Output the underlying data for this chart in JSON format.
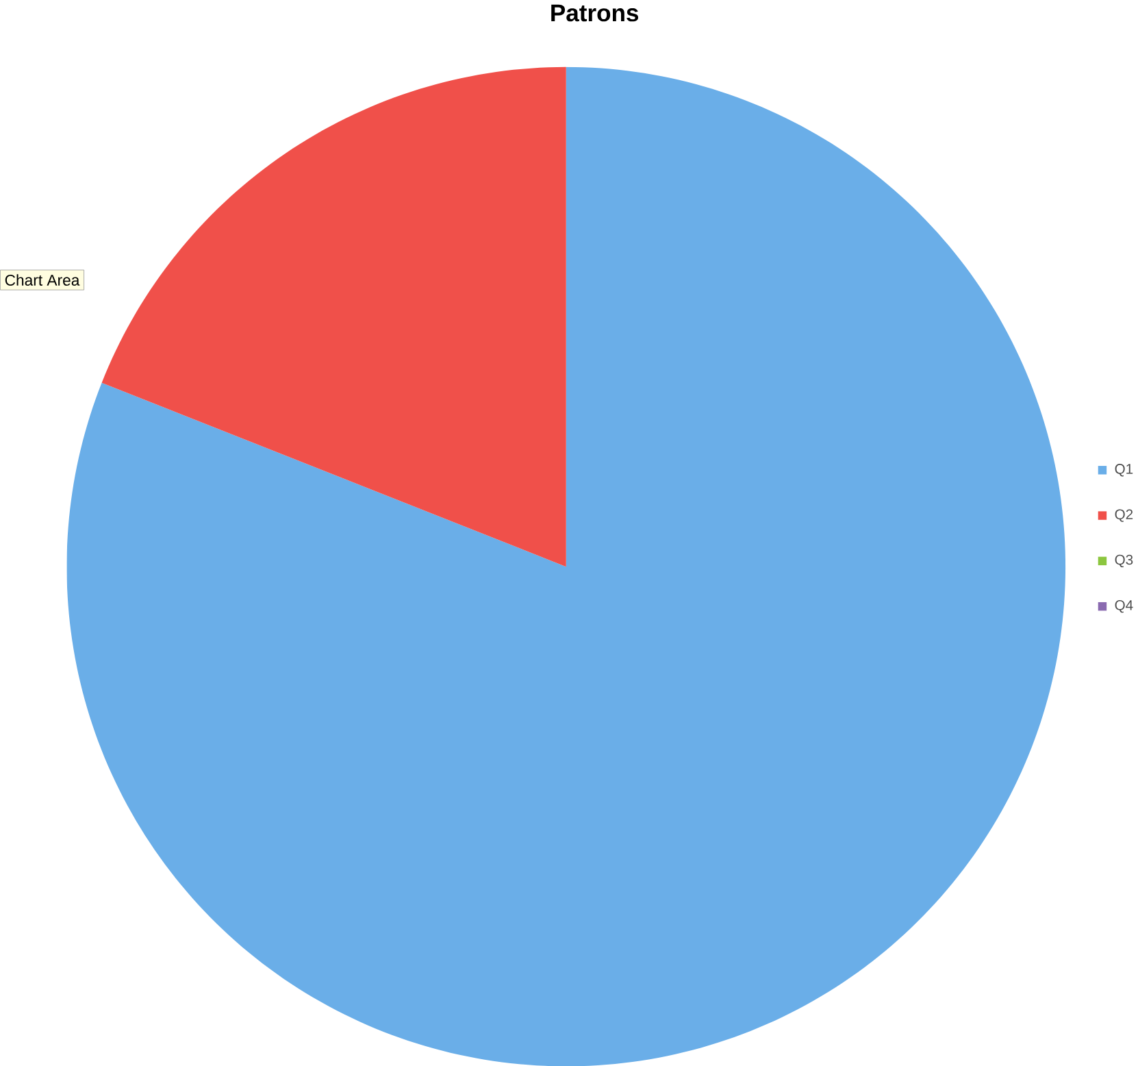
{
  "chart_data": {
    "type": "pie",
    "title": "Patrons",
    "categories": [
      "Q1",
      "Q2",
      "Q3",
      "Q4"
    ],
    "values": [
      81,
      19,
      0,
      0
    ],
    "colors": [
      "#6aaee8",
      "#f0504a",
      "#8cc63f",
      "#8a6ab0"
    ],
    "legend": "right",
    "annotations": [
      "Chart Area"
    ]
  }
}
